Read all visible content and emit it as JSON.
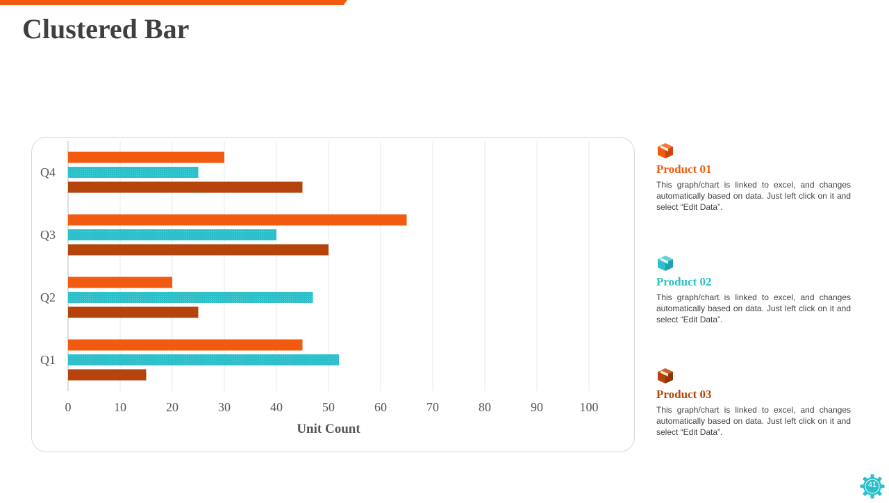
{
  "title": "Clustered Bar",
  "page_number": "41",
  "colors": {
    "accent": "#f15a0f",
    "product_01": "#f15a0f",
    "product_02": "#2bbfc9",
    "product_03": "#b5440c",
    "grid": "#e8e8e8",
    "text": "#3f3f3f"
  },
  "legend": [
    {
      "name": "Product 01",
      "icon": "box-icon",
      "description": "This graph/chart is linked to excel, and changes automatically based on data. Just left click on it and select “Edit Data”."
    },
    {
      "name": "Product 02",
      "icon": "box-icon",
      "description": "This graph/chart is linked to excel, and changes automatically based on data. Just left click on it and select “Edit Data”."
    },
    {
      "name": "Product 03",
      "icon": "box-icon",
      "description": "This graph/chart is linked to excel, and changes automatically based on data. Just left click on it and select “Edit Data”."
    }
  ],
  "chart_data": {
    "type": "bar",
    "orientation": "horizontal",
    "title": "",
    "xlabel": "Unit Count",
    "ylabel": "",
    "categories": [
      "Q1",
      "Q2",
      "Q3",
      "Q4"
    ],
    "series": [
      {
        "name": "Product 01",
        "values": [
          45,
          20,
          65,
          30
        ]
      },
      {
        "name": "Product 02",
        "values": [
          52,
          47,
          40,
          25
        ]
      },
      {
        "name": "Product 03",
        "values": [
          15,
          25,
          50,
          45
        ]
      }
    ],
    "xlim": [
      0,
      100
    ],
    "xticks": [
      0,
      10,
      20,
      30,
      40,
      50,
      60,
      70,
      80,
      90,
      100
    ],
    "grid": true,
    "legend_position": "right"
  }
}
